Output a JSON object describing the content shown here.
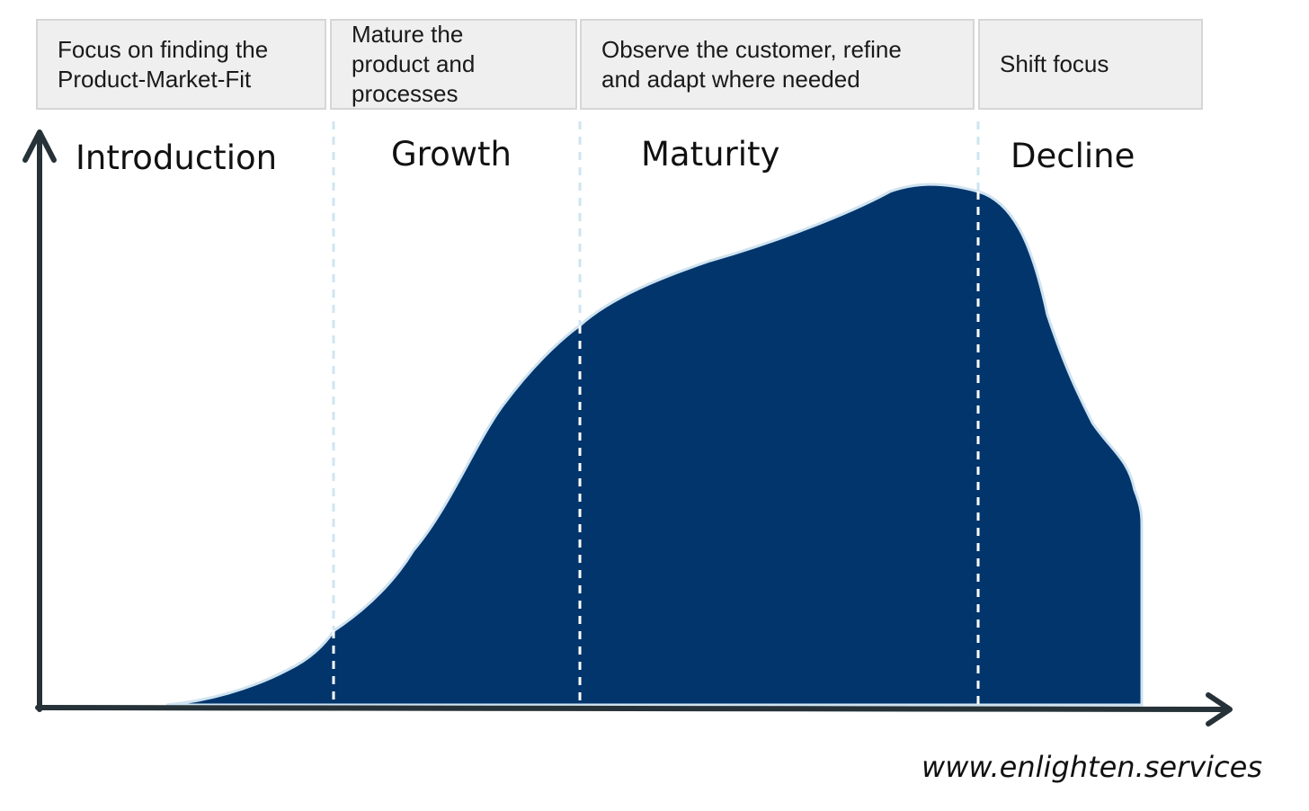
{
  "phases": [
    {
      "focus": "Focus on finding the Product-Market-Fit",
      "stage": "Introduction"
    },
    {
      "focus": "Mature the product and processes",
      "stage": "Growth"
    },
    {
      "focus": "Observe the customer, refine and adapt where needed",
      "stage": "Maturity"
    },
    {
      "focus": "Shift focus",
      "stage": "Decline"
    }
  ],
  "website": "www.enlighten.services",
  "colors": {
    "area_fill": "#02356c",
    "area_outline": "#cfe3f0",
    "axis": "#263238",
    "divider_light": "#cfe5f1",
    "divider_on_fill": "#ffffff",
    "box_fill": "#efefef",
    "box_border": "#d6d6d6"
  }
}
